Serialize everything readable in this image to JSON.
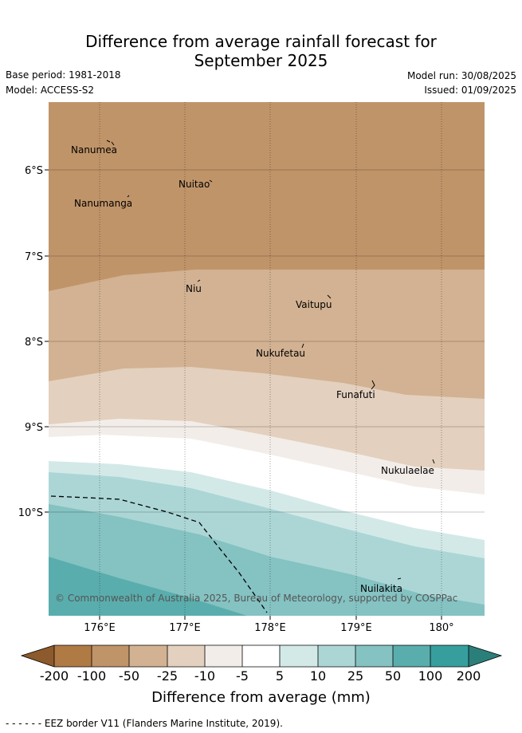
{
  "header": {
    "title_line1": "Difference from average rainfall forecast for",
    "title_line2": "September 2025",
    "base_period": "Base period: 1981-2018",
    "model": "Model: ACCESS-S2",
    "model_run": "Model run: 30/08/2025",
    "issued": "Issued: 01/09/2025"
  },
  "map": {
    "lon_ticks": [
      "176°E",
      "177°E",
      "178°E",
      "179°E",
      "180°"
    ],
    "lat_ticks": [
      "6°S",
      "7°S",
      "8°S",
      "9°S",
      "10°S"
    ],
    "places": [
      "Nanumea",
      "Nuitao",
      "Nanumanga",
      "Niu",
      "Vaitupu",
      "Nukufetau",
      "Funafuti",
      "Nukulaelae",
      "Nuilakita"
    ],
    "copyright": "© Commonwealth of Australia 2025, Bureau of Meteorology, supported by COSPPac"
  },
  "colorbar": {
    "ticks": [
      "-200",
      "-100",
      "-50",
      "-25",
      "-10",
      "-5",
      "5",
      "10",
      "25",
      "50",
      "100",
      "200"
    ],
    "colors": [
      "#8c5a2c",
      "#b07a44",
      "#c09469",
      "#d2b292",
      "#e3d0be",
      "#f3ede9",
      "#ffffff",
      "#d3e9e8",
      "#acd6d6",
      "#85c2c2",
      "#5aadad",
      "#369f9d",
      "#2b7f7b"
    ],
    "title": "Difference from average (mm)"
  },
  "footer": {
    "eez_note": "- -  - -  - - EEZ border V11 (Flanders Marine Institute, 2019)."
  }
}
